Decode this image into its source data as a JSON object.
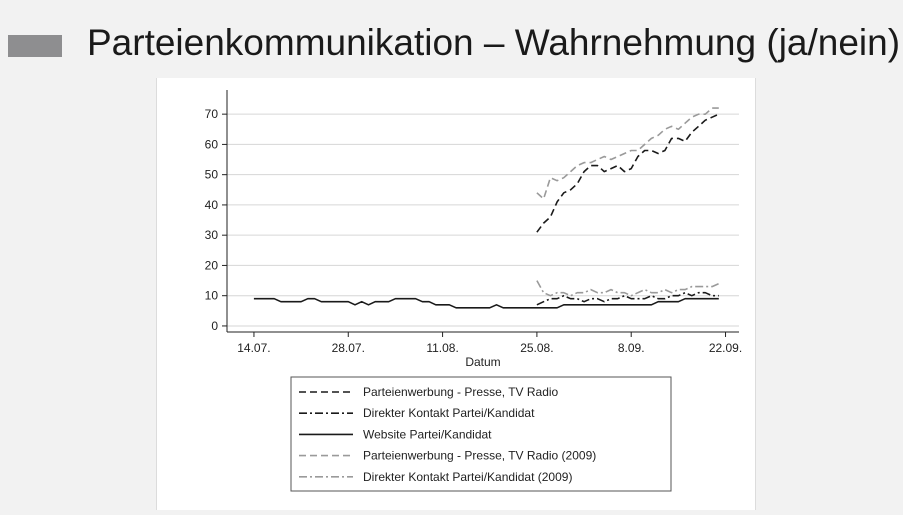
{
  "slide": {
    "title": "Parteienkommunikation – Wahrnehmung (ja/nein)",
    "marker_color": "#8e8e90"
  },
  "chart_data": {
    "type": "line",
    "xlabel": "Datum",
    "ylabel": "",
    "x_tick_labels": [
      "14.07.",
      "28.07.",
      "11.08.",
      "25.08.",
      "8.09.",
      "22.09."
    ],
    "x_tick_days": [
      0,
      14,
      28,
      42,
      56,
      70
    ],
    "xlim_days": [
      -4,
      72
    ],
    "y_ticks": [
      0,
      10,
      20,
      30,
      40,
      50,
      60,
      70
    ],
    "ylim": [
      -2,
      76
    ],
    "grid": "horizontal",
    "legend_position": "bottom",
    "series": [
      {
        "name": "Parteienwerbung - Presse, TV Radio",
        "color": "#1a1a1a",
        "dash": "dash",
        "x_days": [
          42,
          43,
          44,
          45,
          46,
          47,
          48,
          49,
          50,
          51,
          52,
          53,
          54,
          55,
          56,
          57,
          58,
          59,
          60,
          61,
          62,
          63,
          64,
          65,
          66,
          67,
          68,
          69
        ],
        "values": [
          31,
          34,
          36,
          41,
          44,
          45,
          47,
          51,
          53,
          53,
          51,
          52,
          53,
          51,
          52,
          56,
          58,
          58,
          57,
          58,
          62,
          62,
          61,
          64,
          66,
          68,
          69,
          70
        ]
      },
      {
        "name": "Direkter Kontakt Partei/Kandidat",
        "color": "#1a1a1a",
        "dash": "dashdot",
        "x_days": [
          42,
          43,
          44,
          45,
          46,
          47,
          48,
          49,
          50,
          51,
          52,
          53,
          54,
          55,
          56,
          57,
          58,
          59,
          60,
          61,
          62,
          63,
          64,
          65,
          66,
          67,
          68,
          69
        ],
        "values": [
          7,
          8,
          9,
          9,
          10,
          9,
          9,
          8,
          9,
          9,
          8,
          9,
          9,
          10,
          9,
          9,
          9,
          10,
          9,
          9,
          10,
          10,
          11,
          10,
          11,
          11,
          10,
          10
        ]
      },
      {
        "name": "Website Partei/Kandidat",
        "color": "#1a1a1a",
        "dash": "solid",
        "x_days": [
          0,
          1,
          2,
          3,
          4,
          5,
          6,
          7,
          8,
          9,
          10,
          11,
          12,
          13,
          14,
          15,
          16,
          17,
          18,
          19,
          20,
          21,
          22,
          23,
          24,
          25,
          26,
          27,
          28,
          29,
          30,
          31,
          32,
          33,
          34,
          35,
          36,
          37,
          38,
          39,
          40,
          41,
          42,
          43,
          44,
          45,
          46,
          47,
          48,
          49,
          50,
          51,
          52,
          53,
          54,
          55,
          56,
          57,
          58,
          59,
          60,
          61,
          62,
          63,
          64,
          65,
          66,
          67,
          68,
          69
        ],
        "values": [
          9,
          9,
          9,
          9,
          8,
          8,
          8,
          8,
          9,
          9,
          8,
          8,
          8,
          8,
          8,
          7,
          8,
          7,
          8,
          8,
          8,
          9,
          9,
          9,
          9,
          8,
          8,
          7,
          7,
          7,
          6,
          6,
          6,
          6,
          6,
          6,
          7,
          6,
          6,
          6,
          6,
          6,
          6,
          6,
          6,
          6,
          7,
          7,
          7,
          7,
          7,
          7,
          7,
          7,
          7,
          7,
          7,
          7,
          7,
          7,
          8,
          8,
          8,
          8,
          9,
          9,
          9,
          9,
          9,
          9
        ]
      },
      {
        "name": "Parteienwerbung - Presse, TV Radio (2009)",
        "color": "#9a9a9a",
        "dash": "dash",
        "x_days": [
          42,
          43,
          44,
          45,
          46,
          47,
          48,
          49,
          50,
          51,
          52,
          53,
          54,
          55,
          56,
          57,
          58,
          59,
          60,
          61,
          62,
          63,
          64,
          65,
          66,
          67,
          68,
          69
        ],
        "values": [
          44,
          42,
          49,
          48,
          49,
          51,
          53,
          54,
          54,
          55,
          56,
          55,
          56,
          57,
          58,
          58,
          60,
          62,
          63,
          65,
          66,
          65,
          67,
          69,
          70,
          70,
          72,
          72
        ]
      },
      {
        "name": "Direkter Kontakt Partei/Kandidat (2009)",
        "color": "#9a9a9a",
        "dash": "dashdot",
        "x_days": [
          42,
          43,
          44,
          45,
          46,
          47,
          48,
          49,
          50,
          51,
          52,
          53,
          54,
          55,
          56,
          57,
          58,
          59,
          60,
          61,
          62,
          63,
          64,
          65,
          66,
          67,
          68,
          69
        ],
        "values": [
          15,
          11,
          10,
          11,
          11,
          10,
          11,
          11,
          12,
          11,
          11,
          12,
          11,
          11,
          10,
          11,
          12,
          11,
          11,
          12,
          11,
          12,
          12,
          13,
          13,
          13,
          13,
          14
        ]
      }
    ]
  }
}
